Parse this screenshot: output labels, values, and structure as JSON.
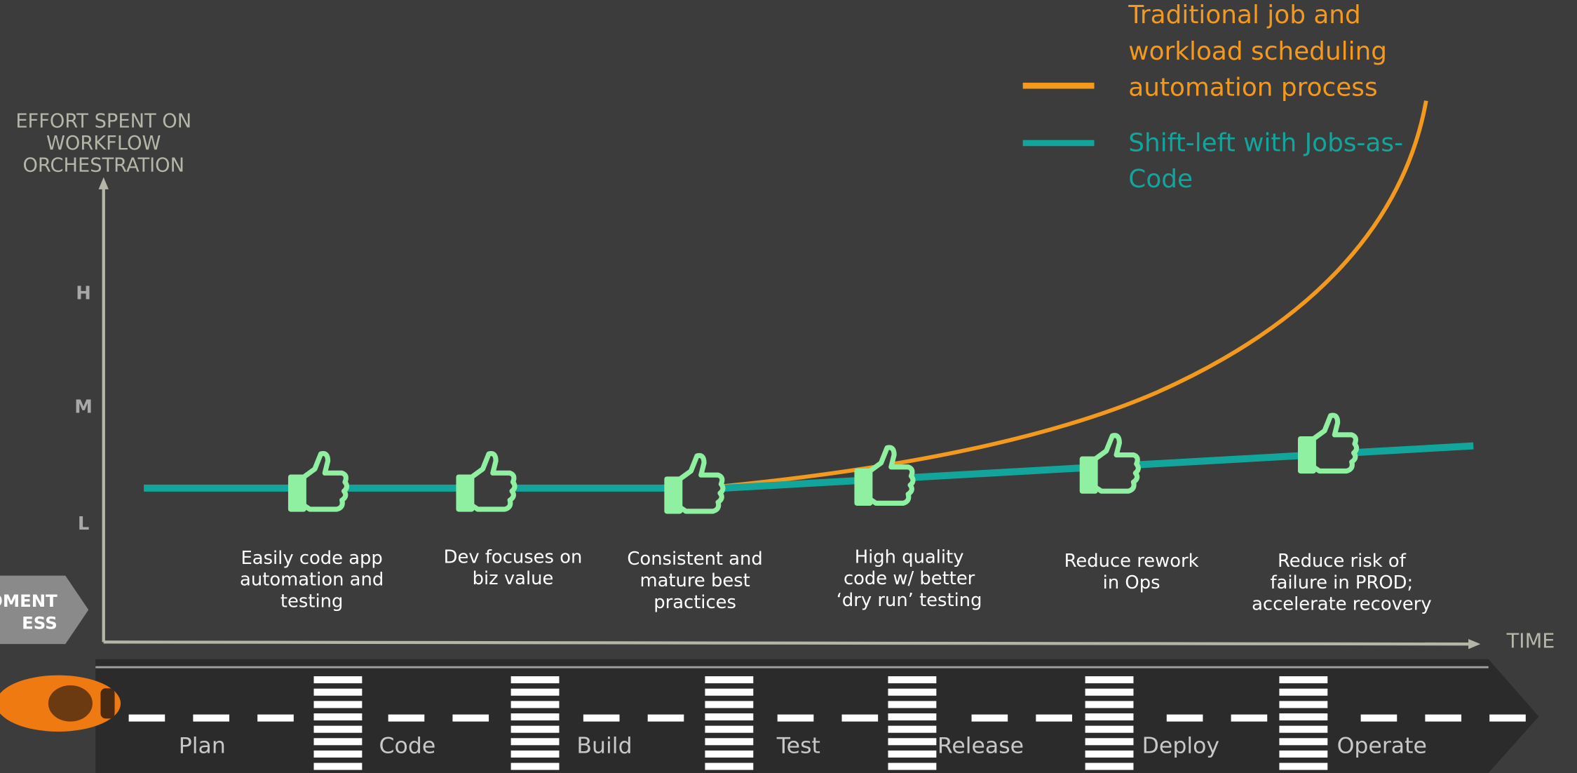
{
  "legend": [
    {
      "lines": [
        "Traditional job and",
        "workload scheduling",
        "automation process"
      ],
      "color": "#f39a1e"
    },
    {
      "lines": [
        "Shift-left with Jobs-as-",
        "Code"
      ],
      "color": "#12a59b"
    }
  ],
  "y_axis": {
    "title_lines": [
      "EFFORT SPENT ON",
      "WORKFLOW",
      "ORCHESTRATION"
    ],
    "levels": [
      "H",
      "M",
      "L"
    ]
  },
  "x_axis": {
    "title": "TIME"
  },
  "process_tag": {
    "lines": [
      "OMENT",
      "ESS"
    ]
  },
  "benefits": [
    {
      "lines": [
        "Easily code app",
        "automation and",
        "testing"
      ]
    },
    {
      "lines": [
        "Dev focuses on",
        "biz value"
      ]
    },
    {
      "lines": [
        "Consistent and",
        "mature best",
        "practices"
      ]
    },
    {
      "lines": [
        "High quality",
        "code w/ better",
        "‘dry run’ testing"
      ]
    },
    {
      "lines": [
        "Reduce rework",
        "in Ops"
      ]
    },
    {
      "lines": [
        "Reduce risk of",
        "failure in PROD;",
        "accelerate recovery"
      ]
    }
  ],
  "stages": [
    "Plan",
    "Code",
    "Build",
    "Test",
    "Release",
    "Deploy",
    "Operate"
  ]
}
